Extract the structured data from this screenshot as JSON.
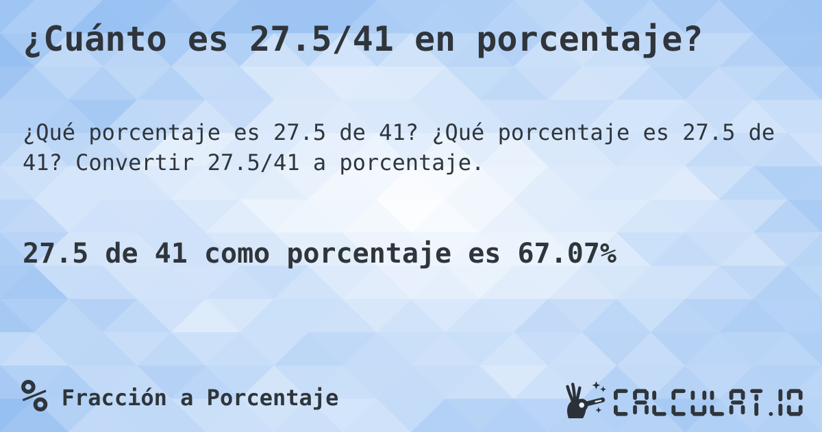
{
  "card": {
    "title": "¿Cuánto es 27.5/41 en porcentaje?",
    "description": "¿Qué porcentaje es 27.5 de 41? ¿Qué porcentaje es 27.5 de 41? Convertir 27.5/41 a porcentaje.",
    "answer": "27.5 de 41 como porcentaje es 67.07%",
    "footer": {
      "category_icon": "%",
      "category_label": "Fracción a Porcentaje"
    },
    "brand": {
      "wordmark": "CALCULAT.IO"
    },
    "colors": {
      "text": "#2f353b",
      "pattern_blue": "#97c0f2",
      "pattern_white": "#ffffff"
    }
  }
}
